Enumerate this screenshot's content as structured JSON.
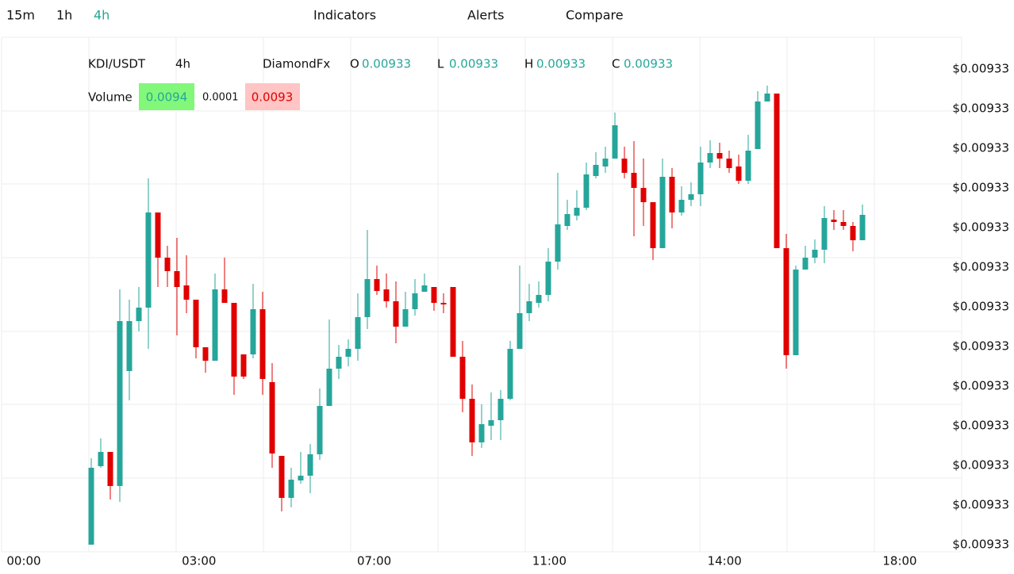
{
  "toolbar": {
    "intervals": [
      "15m",
      "1h",
      "4h"
    ],
    "active_interval": 2,
    "active_color": "#26a69a",
    "buttons": [
      "Indicators",
      "Alerts",
      "Compare"
    ]
  },
  "chart_data": {
    "type": "candlestick",
    "symbol": "KDI/USDT",
    "interval": "4h",
    "source": "DiamondFx",
    "ohlc_legend": [
      {
        "label": "O",
        "value": 0.00933
      },
      {
        "label": "L",
        "value": 0.00933
      },
      {
        "label": "H",
        "value": 0.00933
      },
      {
        "label": "C",
        "value": 0.00933
      }
    ],
    "volume": {
      "label": "Volume",
      "values": [
        0.0094,
        0.0001,
        0.0093
      ]
    },
    "up_color": "#26a69a",
    "down_color": "#e00000",
    "x_labels": [
      "00:00",
      "03:00",
      "07:00",
      "11:00",
      "14:00",
      "18:00"
    ],
    "ylim": [
      0.0093269,
      0.0093334
    ],
    "yticks": [
      {
        "value": 0.009333,
        "label": "$0.00933"
      },
      {
        "value": 0.0093325,
        "label": "$0.00933"
      },
      {
        "value": 0.009332,
        "label": "$0.00933"
      },
      {
        "value": 0.0093315,
        "label": "$0.00933"
      },
      {
        "value": 0.009331,
        "label": "$0.00933"
      },
      {
        "value": 0.0093305,
        "label": "$0.00933"
      },
      {
        "value": 0.00933,
        "label": "$0.00933"
      },
      {
        "value": 0.0093295,
        "label": "$0.00933"
      },
      {
        "value": 0.009329,
        "label": "$0.00933"
      },
      {
        "value": 0.0093285,
        "label": "$0.00933"
      },
      {
        "value": 0.009328,
        "label": "$0.00933"
      },
      {
        "value": 0.0093275,
        "label": "$0.00933"
      },
      {
        "value": 0.009327,
        "label": "$0.00933"
      }
    ],
    "open": [
      0.009327,
      0.00932799,
      0.00932817,
      0.00932774,
      0.00932919,
      0.00932982,
      0.00932999,
      0.00933119,
      0.00933062,
      0.00933045,
      0.00933027,
      0.00933009,
      0.00932949,
      0.00932932,
      0.00933022,
      0.00933005,
      0.0093294,
      0.0093294,
      0.00932997,
      0.00932905,
      0.00932812,
      0.00932759,
      0.00932781,
      0.00932787,
      0.00932814,
      0.00932875,
      0.00932922,
      0.00932937,
      0.00932947,
      0.00932987,
      0.00933035,
      0.00933022,
      0.00933007,
      0.00932975,
      0.00932997,
      0.00933019,
      0.00933025,
      0.00933005,
      0.00933025,
      0.00932937,
      0.00932884,
      0.00932829,
      0.0093285,
      0.00932857,
      0.00932884,
      0.00932947,
      0.00932992,
      0.00933005,
      0.00933015,
      0.00933057,
      0.00933102,
      0.00933115,
      0.00933125,
      0.00933165,
      0.00933177,
      0.00933187,
      0.00933187,
      0.00933169,
      0.0093315,
      0.00933132,
      0.00933074,
      0.00933164,
      0.00933119,
      0.00933135,
      0.00933142,
      0.00933182,
      0.00933194,
      0.00933187,
      0.00933177,
      0.00933159,
      0.00933199,
      0.00933259,
      0.00933269,
      0.00933074,
      0.00932939,
      0.00933047,
      0.00933062,
      0.00933072,
      0.0093311,
      0.00933107,
      0.00933102,
      0.00933084
    ],
    "high": [
      0.00932809,
      0.00932834,
      0.00932817,
      0.00933022,
      0.00933009,
      0.00933025,
      0.00933162,
      0.00933119,
      0.00933077,
      0.00933087,
      0.00933065,
      0.00933009,
      0.00932949,
      0.00933042,
      0.00933062,
      0.00933005,
      0.0093294,
      0.00933029,
      0.00933019,
      0.00932929,
      0.00932812,
      0.00932797,
      0.00932817,
      0.00932827,
      0.00932897,
      0.00932984,
      0.00932952,
      0.00932959,
      0.00933017,
      0.00933097,
      0.00933052,
      0.00933042,
      0.00933032,
      0.00933019,
      0.00933035,
      0.00933042,
      0.00933025,
      0.00933017,
      0.00933025,
      0.00932957,
      0.00932902,
      0.00932877,
      0.00932892,
      0.00932895,
      0.00932957,
      0.00933052,
      0.00933029,
      0.00933032,
      0.00933074,
      0.00933169,
      0.00933135,
      0.00933147,
      0.00933182,
      0.00933195,
      0.00933202,
      0.00933245,
      0.00933202,
      0.00933209,
      0.00933187,
      0.00933132,
      0.00933187,
      0.00933175,
      0.00933152,
      0.00933157,
      0.00933202,
      0.0093321,
      0.00933207,
      0.00933197,
      0.00933192,
      0.00933217,
      0.00933272,
      0.00933279,
      0.00933269,
      0.00933092,
      0.00933052,
      0.00933077,
      0.00933085,
      0.00933127,
      0.00933122,
      0.00933122,
      0.00933107,
      0.00933129
    ],
    "low": [
      0.009327,
      0.00932797,
      0.00932757,
      0.00932754,
      0.00932882,
      0.00932969,
      0.00932947,
      0.00933025,
      0.00933025,
      0.00932964,
      0.00932992,
      0.00932935,
      0.00932917,
      0.00932932,
      0.00933005,
      0.00932889,
      0.00932909,
      0.00932935,
      0.00932889,
      0.00932797,
      0.00932742,
      0.00932747,
      0.00932777,
      0.00932765,
      0.00932807,
      0.00932875,
      0.00932909,
      0.00932925,
      0.00932932,
      0.00932972,
      0.00933015,
      0.00932999,
      0.00932954,
      0.00932975,
      0.00932989,
      0.00933019,
      0.00932995,
      0.00932992,
      0.00932937,
      0.00932867,
      0.00932812,
      0.00932822,
      0.00932832,
      0.00932832,
      0.00932882,
      0.00932947,
      0.00932982,
      0.00932999,
      0.00933007,
      0.00933047,
      0.00933097,
      0.00933109,
      0.00933122,
      0.00933162,
      0.00933169,
      0.00933187,
      0.00933162,
      0.00933089,
      0.00933102,
      0.00933059,
      0.00933074,
      0.00933099,
      0.00933115,
      0.00933127,
      0.00933127,
      0.00933175,
      0.00933175,
      0.00933169,
      0.00933155,
      0.00933155,
      0.00933199,
      0.00933259,
      0.00933074,
      0.00932922,
      0.00932939,
      0.00933047,
      0.00933055,
      0.00933055,
      0.00933097,
      0.00933097,
      0.0093307,
      0.00933084
    ],
    "close": [
      0.00932797,
      0.00932817,
      0.00932774,
      0.00932982,
      0.00932982,
      0.00932999,
      0.00933119,
      0.00933062,
      0.00933045,
      0.00933025,
      0.00933009,
      0.00932949,
      0.00932932,
      0.00933022,
      0.00933005,
      0.00932912,
      0.00932912,
      0.00932997,
      0.00932909,
      0.00932815,
      0.00932759,
      0.00932782,
      0.00932787,
      0.00932814,
      0.00932875,
      0.00932922,
      0.00932937,
      0.00932947,
      0.00932987,
      0.00933035,
      0.0093302,
      0.00933007,
      0.00932975,
      0.00932997,
      0.00933017,
      0.00933027,
      0.00933005,
      0.00933003,
      0.00932937,
      0.00932884,
      0.00932829,
      0.00932852,
      0.00932857,
      0.00932884,
      0.00932947,
      0.00932992,
      0.00933007,
      0.00933015,
      0.00933057,
      0.00933104,
      0.00933117,
      0.00933125,
      0.00933167,
      0.00933179,
      0.00933187,
      0.00933229,
      0.00933169,
      0.0093315,
      0.00933132,
      0.00933074,
      0.00933164,
      0.00933119,
      0.00933135,
      0.00933142,
      0.00933182,
      0.00933194,
      0.00933187,
      0.00933175,
      0.00933159,
      0.00933197,
      0.00933259,
      0.00933269,
      0.00933074,
      0.00932939,
      0.00933047,
      0.00933062,
      0.00933072,
      0.00933112,
      0.00933107,
      0.00933102,
      0.00933084,
      0.00933116
    ]
  }
}
